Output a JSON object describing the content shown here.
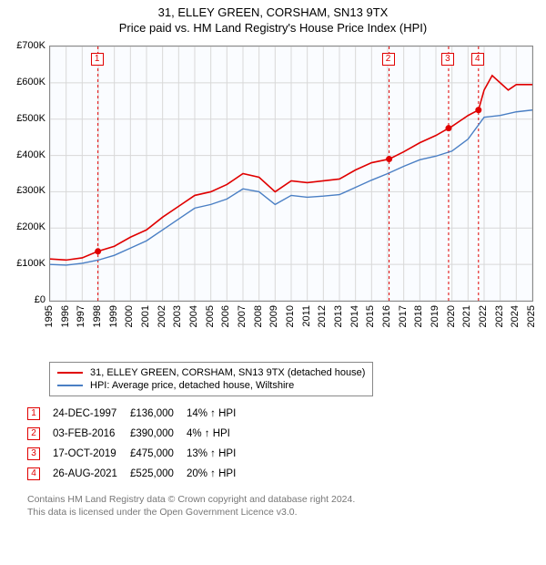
{
  "title": {
    "line1": "31, ELLEY GREEN, CORSHAM, SN13 9TX",
    "line2": "Price paid vs. HM Land Registry's House Price Index (HPI)"
  },
  "chart": {
    "type": "line",
    "background_color": "#fafcff",
    "grid_color": "#d8d8d8",
    "border_color": "#888888",
    "x": {
      "min": 1995,
      "max": 2025,
      "ticks": [
        1995,
        1996,
        1997,
        1998,
        1999,
        2000,
        2001,
        2002,
        2003,
        2004,
        2005,
        2006,
        2007,
        2008,
        2009,
        2010,
        2011,
        2012,
        2013,
        2014,
        2015,
        2016,
        2017,
        2018,
        2019,
        2020,
        2021,
        2022,
        2023,
        2024,
        2025
      ],
      "label_fontsize": 11
    },
    "y": {
      "min": 0,
      "max": 700000,
      "tick_step": 100000,
      "tick_labels": [
        "£0",
        "£100K",
        "£200K",
        "£300K",
        "£400K",
        "£500K",
        "£600K",
        "£700K"
      ],
      "label_fontsize": 11
    },
    "series": [
      {
        "name": "31, ELLEY GREEN, CORSHAM, SN13 9TX (detached house)",
        "color": "#e00000",
        "width": 1.6,
        "data": [
          [
            1995,
            115000
          ],
          [
            1996,
            112000
          ],
          [
            1997,
            118000
          ],
          [
            1997.98,
            136000
          ],
          [
            1999,
            150000
          ],
          [
            2000,
            175000
          ],
          [
            2001,
            195000
          ],
          [
            2002,
            230000
          ],
          [
            2003,
            260000
          ],
          [
            2004,
            290000
          ],
          [
            2005,
            300000
          ],
          [
            2006,
            320000
          ],
          [
            2007,
            350000
          ],
          [
            2008,
            340000
          ],
          [
            2009,
            300000
          ],
          [
            2010,
            330000
          ],
          [
            2011,
            325000
          ],
          [
            2012,
            330000
          ],
          [
            2013,
            335000
          ],
          [
            2014,
            360000
          ],
          [
            2015,
            380000
          ],
          [
            2016.09,
            390000
          ],
          [
            2017,
            410000
          ],
          [
            2018,
            435000
          ],
          [
            2019,
            455000
          ],
          [
            2019.79,
            475000
          ],
          [
            2020,
            480000
          ],
          [
            2021,
            510000
          ],
          [
            2021.65,
            525000
          ],
          [
            2022,
            580000
          ],
          [
            2022.5,
            620000
          ],
          [
            2023,
            600000
          ],
          [
            2023.5,
            580000
          ],
          [
            2024,
            595000
          ],
          [
            2025,
            595000
          ]
        ]
      },
      {
        "name": "HPI: Average price, detached house, Wiltshire",
        "color": "#4a7fc4",
        "width": 1.4,
        "data": [
          [
            1995,
            100000
          ],
          [
            1996,
            98000
          ],
          [
            1997,
            103000
          ],
          [
            1998,
            112000
          ],
          [
            1999,
            125000
          ],
          [
            2000,
            145000
          ],
          [
            2001,
            165000
          ],
          [
            2002,
            195000
          ],
          [
            2003,
            225000
          ],
          [
            2004,
            255000
          ],
          [
            2005,
            265000
          ],
          [
            2006,
            280000
          ],
          [
            2007,
            308000
          ],
          [
            2008,
            300000
          ],
          [
            2009,
            265000
          ],
          [
            2010,
            290000
          ],
          [
            2011,
            285000
          ],
          [
            2012,
            288000
          ],
          [
            2013,
            292000
          ],
          [
            2014,
            312000
          ],
          [
            2015,
            332000
          ],
          [
            2016,
            350000
          ],
          [
            2017,
            370000
          ],
          [
            2018,
            388000
          ],
          [
            2019,
            398000
          ],
          [
            2020,
            412000
          ],
          [
            2021,
            445000
          ],
          [
            2022,
            505000
          ],
          [
            2023,
            510000
          ],
          [
            2024,
            520000
          ],
          [
            2025,
            525000
          ]
        ]
      }
    ],
    "sale_markers": [
      {
        "n": "1",
        "x": 1997.98,
        "y": 136000
      },
      {
        "n": "2",
        "x": 2016.09,
        "y": 390000
      },
      {
        "n": "3",
        "x": 2019.79,
        "y": 475000
      },
      {
        "n": "4",
        "x": 2021.65,
        "y": 525000
      }
    ],
    "sale_marker_style": {
      "vline_color": "#e00000",
      "vline_dash": "3,3",
      "point_color": "#e00000",
      "point_radius": 3.5,
      "box_border": "#e00000",
      "box_text_color": "#e00000"
    }
  },
  "legend": {
    "items": [
      {
        "color": "#e00000",
        "label": "31, ELLEY GREEN, CORSHAM, SN13 9TX (detached house)"
      },
      {
        "color": "#4a7fc4",
        "label": "HPI: Average price, detached house, Wiltshire"
      }
    ]
  },
  "sales": [
    {
      "n": "1",
      "date": "24-DEC-1997",
      "price": "£136,000",
      "delta": "14% ↑ HPI"
    },
    {
      "n": "2",
      "date": "03-FEB-2016",
      "price": "£390,000",
      "delta": "4% ↑ HPI"
    },
    {
      "n": "3",
      "date": "17-OCT-2019",
      "price": "£475,000",
      "delta": "13% ↑ HPI"
    },
    {
      "n": "4",
      "date": "26-AUG-2021",
      "price": "£525,000",
      "delta": "20% ↑ HPI"
    }
  ],
  "footer": {
    "line1": "Contains HM Land Registry data © Crown copyright and database right 2024.",
    "line2": "This data is licensed under the Open Government Licence v3.0."
  }
}
